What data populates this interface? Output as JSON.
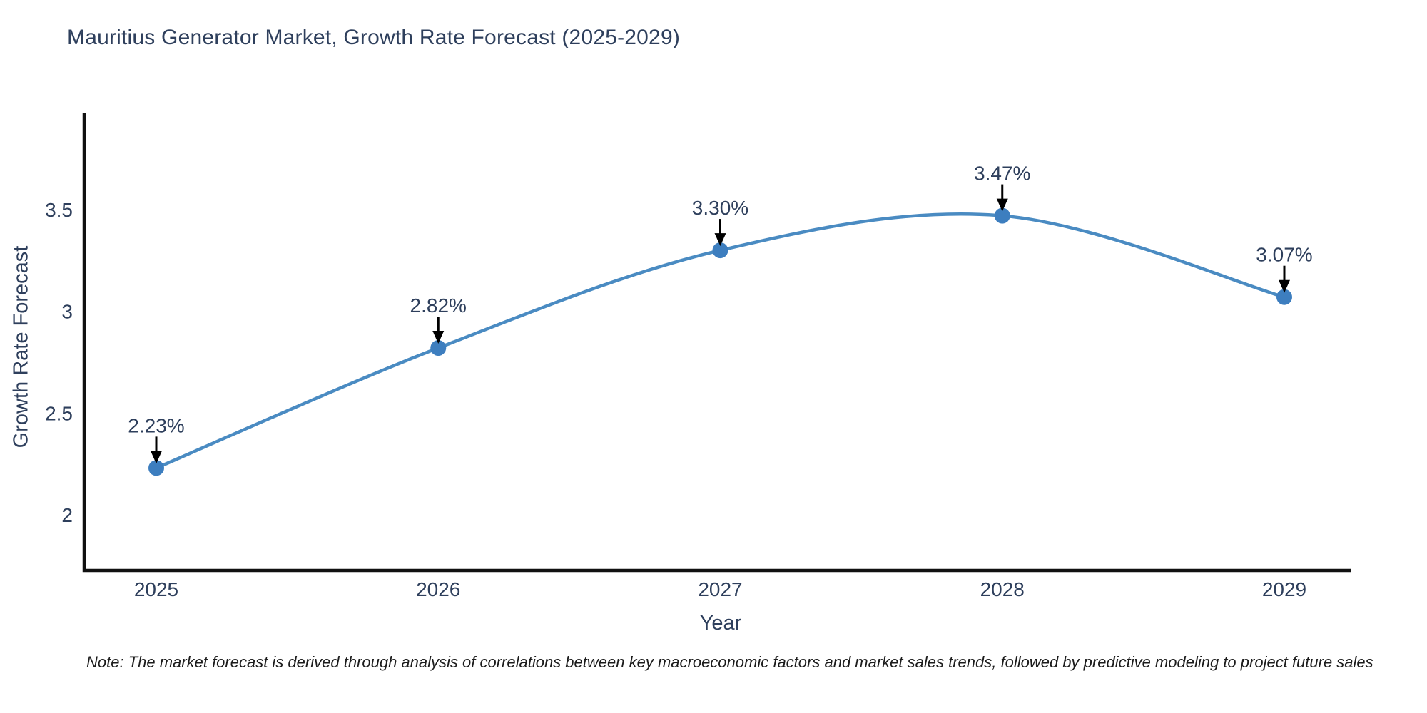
{
  "chart_data": {
    "type": "line",
    "title": "Mauritius Generator Market, Growth Rate Forecast (2025-2029)",
    "xlabel": "Year",
    "ylabel": "Growth Rate Forecast",
    "categories": [
      "2025",
      "2026",
      "2027",
      "2028",
      "2029"
    ],
    "series": [
      {
        "name": "Growth Rate Forecast",
        "values": [
          2.23,
          2.82,
          3.3,
          3.47,
          3.07
        ],
        "point_labels": [
          "2.23%",
          "2.82%",
          "3.30%",
          "3.47%",
          "3.07%"
        ]
      }
    ],
    "y_ticks": [
      2,
      2.5,
      3,
      3.5
    ],
    "ylim": [
      1.73,
      3.97
    ],
    "line_shape": "spline",
    "grid": false,
    "legend_visible": false,
    "annotations": "value labels with downward arrows above each data point",
    "colors": {
      "line": "#4a8bc2",
      "marker": "#3d7ebf",
      "axis": "#111111",
      "text": "#2e3f5c",
      "arrow": "#000000"
    }
  },
  "note": "Note: The market forecast is derived through analysis of correlations between key macroeconomic factors and market sales trends, followed by predictive modeling to project future sales"
}
